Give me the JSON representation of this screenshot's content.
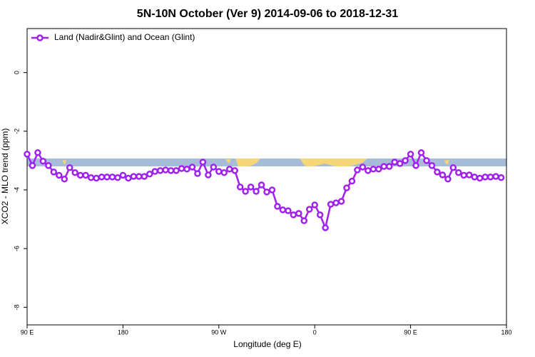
{
  "chart_data": {
    "type": "line",
    "title": "5N-10N October (Ver 9)   2014-09-06 to 2018-12-31",
    "xlabel": "Longitude (deg E)",
    "ylabel": "XCO2 - MLO trend (ppm)",
    "xlim": [
      90,
      540
    ],
    "ylim": [
      -8.6,
      1.5
    ],
    "xticks": [
      {
        "value": 90,
        "label": "90 E"
      },
      180,
      {
        "value": 270,
        "label": "90 W"
      },
      {
        "value": 360,
        "label": "0"
      },
      {
        "value": 450,
        "label": "90 E"
      },
      {
        "value": 540,
        "label": "180"
      }
    ],
    "yticks": [
      0,
      -2,
      -4,
      -6,
      -8
    ],
    "legend": "top-left",
    "x": [
      90,
      95,
      100,
      105,
      110,
      115,
      120,
      125,
      130,
      135,
      140,
      145,
      150,
      155,
      160,
      165,
      170,
      175,
      180,
      185,
      190,
      195,
      200,
      205,
      210,
      215,
      220,
      225,
      230,
      235,
      240,
      245,
      250,
      255,
      260,
      265,
      270,
      275,
      280,
      285,
      290,
      295,
      300,
      305,
      310,
      315,
      320,
      325,
      330,
      335,
      340,
      345,
      350,
      355,
      360,
      365,
      370,
      375,
      380,
      385,
      390,
      395,
      400,
      405,
      410,
      415,
      420,
      425,
      430,
      435,
      440,
      445,
      450,
      455,
      460,
      465,
      470,
      475,
      480,
      485,
      490,
      495,
      500,
      505,
      510,
      515,
      520,
      525,
      530,
      535
    ],
    "series": [
      {
        "name": "Land (Nadir&Glint) and Ocean (Glint)",
        "color": "#a020f0",
        "values": [
          -2.78,
          -3.17,
          -2.73,
          -3.02,
          -3.17,
          -3.39,
          -3.5,
          -3.63,
          -3.24,
          -3.41,
          -3.5,
          -3.5,
          -3.58,
          -3.6,
          -3.56,
          -3.56,
          -3.56,
          -3.58,
          -3.5,
          -3.6,
          -3.54,
          -3.54,
          -3.54,
          -3.46,
          -3.37,
          -3.34,
          -3.32,
          -3.34,
          -3.34,
          -3.27,
          -3.29,
          -3.22,
          -3.44,
          -3.05,
          -3.49,
          -3.22,
          -3.37,
          -3.41,
          -3.29,
          -3.34,
          -3.9,
          -4.05,
          -3.9,
          -4.05,
          -3.83,
          -4.07,
          -4.0,
          -4.56,
          -4.68,
          -4.71,
          -4.85,
          -4.8,
          -5.05,
          -4.66,
          -4.51,
          -4.85,
          -5.29,
          -4.49,
          -4.44,
          -4.39,
          -3.93,
          -3.7,
          -3.32,
          -3.22,
          -3.34,
          -3.29,
          -3.29,
          -3.2,
          -3.2,
          -3.05,
          -3.1,
          -3.0,
          -2.78,
          -3.17,
          -2.73,
          -3.0,
          -3.17,
          -3.39,
          -3.49,
          -3.63,
          -3.24,
          -3.41,
          -3.5,
          -3.49,
          -3.56,
          -3.6,
          -3.56,
          -3.56,
          -3.54,
          -3.58
        ]
      }
    ]
  }
}
